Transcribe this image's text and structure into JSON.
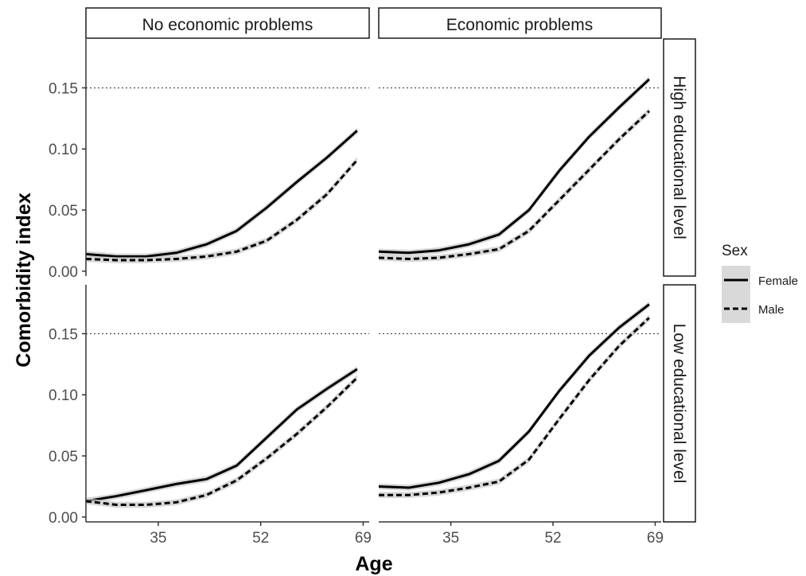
{
  "chart_data": {
    "type": "line",
    "xlabel": "Age",
    "ylabel": "Comorbidity index",
    "x_ticks": [
      35,
      52,
      69
    ],
    "y_ticks": [
      0.0,
      0.05,
      0.1,
      0.15
    ],
    "y_tick_labels": [
      "0.00",
      "0.05",
      "0.10",
      "0.15"
    ],
    "xlim": [
      23,
      70
    ],
    "ylim": [
      -0.004,
      0.19
    ],
    "reference_line_y": 0.15,
    "columns": [
      "No economic problems",
      "Economic problems"
    ],
    "rows": [
      "High educational level",
      "Low educational level"
    ],
    "legend": {
      "title": "Sex",
      "entries": [
        {
          "label": "Female",
          "style": "solid"
        },
        {
          "label": "Male",
          "style": "dashed"
        }
      ]
    },
    "x": [
      23,
      28,
      33,
      38,
      43,
      48,
      53,
      58,
      63,
      68
    ],
    "panels": [
      {
        "row": "High educational level",
        "column": "No economic problems",
        "series": [
          {
            "name": "Female",
            "values": [
              0.014,
              0.012,
              0.012,
              0.015,
              0.022,
              0.033,
              0.052,
              0.073,
              0.093,
              0.115
            ]
          },
          {
            "name": "Male",
            "values": [
              0.01,
              0.009,
              0.009,
              0.01,
              0.012,
              0.016,
              0.025,
              0.042,
              0.063,
              0.091
            ]
          }
        ]
      },
      {
        "row": "High educational level",
        "column": "Economic problems",
        "series": [
          {
            "name": "Female",
            "values": [
              0.016,
              0.015,
              0.017,
              0.022,
              0.03,
              0.05,
              0.082,
              0.11,
              0.134,
              0.157
            ]
          },
          {
            "name": "Male",
            "values": [
              0.011,
              0.01,
              0.011,
              0.014,
              0.018,
              0.033,
              0.058,
              0.083,
              0.108,
              0.131
            ]
          }
        ]
      },
      {
        "row": "Low educational level",
        "column": "No economic problems",
        "series": [
          {
            "name": "Female",
            "values": [
              0.013,
              0.017,
              0.022,
              0.027,
              0.031,
              0.042,
              0.065,
              0.088,
              0.105,
              0.121
            ]
          },
          {
            "name": "Male",
            "values": [
              0.013,
              0.01,
              0.01,
              0.012,
              0.018,
              0.03,
              0.048,
              0.068,
              0.09,
              0.114
            ]
          }
        ]
      },
      {
        "row": "Low educational level",
        "column": "Economic problems",
        "series": [
          {
            "name": "Female",
            "values": [
              0.025,
              0.024,
              0.028,
              0.035,
              0.046,
              0.07,
              0.103,
              0.132,
              0.155,
              0.174
            ]
          },
          {
            "name": "Male",
            "values": [
              0.018,
              0.018,
              0.02,
              0.024,
              0.029,
              0.047,
              0.08,
              0.112,
              0.14,
              0.163
            ]
          }
        ]
      }
    ]
  }
}
